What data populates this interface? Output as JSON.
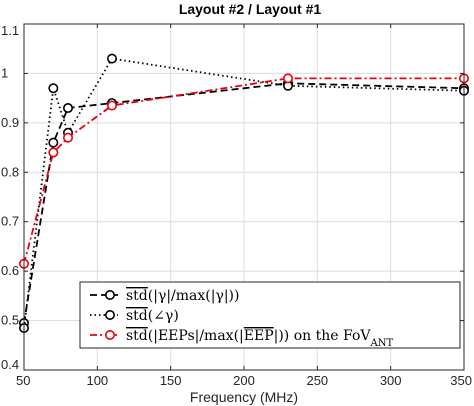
{
  "chart_data": {
    "type": "line",
    "title": "Layout #2 / Layout #1",
    "xlabel": "Frequency (MHz)",
    "ylabel": "",
    "xlim": [
      50,
      350
    ],
    "ylim": [
      0.4,
      1.1
    ],
    "xticks": [
      50,
      100,
      150,
      200,
      250,
      300,
      350
    ],
    "yticks": [
      0.4,
      0.5,
      0.6,
      0.7,
      0.8,
      0.9,
      1.0,
      1.1
    ],
    "xtick_labels": [
      "50",
      "100",
      "150",
      "200",
      "250",
      "300",
      "350"
    ],
    "ytick_labels": [
      "0.4",
      "0.5",
      "0.6",
      "0.7",
      "0.8",
      "0.9",
      "1",
      "1.1"
    ],
    "grid": true,
    "legend_position": "bottom-left",
    "series": [
      {
        "name": "std(|γ|/max(|γ|))",
        "legend": {
          "over": "std",
          "pre": "(|γ|/max(|γ|))",
          "post": "",
          "sub": ""
        },
        "color": "#000000",
        "line_style": "dashed",
        "x": [
          50,
          70,
          80,
          110,
          230,
          350
        ],
        "y": [
          0.495,
          0.86,
          0.93,
          0.94,
          0.98,
          0.97
        ]
      },
      {
        "name": "std(∠γ)",
        "legend": {
          "over": "std",
          "pre": "(∠γ)",
          "post": "",
          "sub": ""
        },
        "color": "#000000",
        "line_style": "dotted",
        "x": [
          50,
          70,
          80,
          110,
          230,
          350
        ],
        "y": [
          0.485,
          0.97,
          0.88,
          1.03,
          0.975,
          0.965
        ]
      },
      {
        "name": "std(|EEPs|/max(|EEP|)) on the FoV_ANT",
        "legend": {
          "over": "std",
          "pre": "(|EEPs|/max(|",
          "over2": "EEP",
          "post": "|)) on the FoV",
          "sub": "ANT"
        },
        "color": "#e8000b",
        "line_style": "dashdot",
        "x": [
          50,
          70,
          80,
          110,
          230,
          350
        ],
        "y": [
          0.615,
          0.84,
          0.87,
          0.935,
          0.99,
          0.99
        ]
      }
    ]
  }
}
